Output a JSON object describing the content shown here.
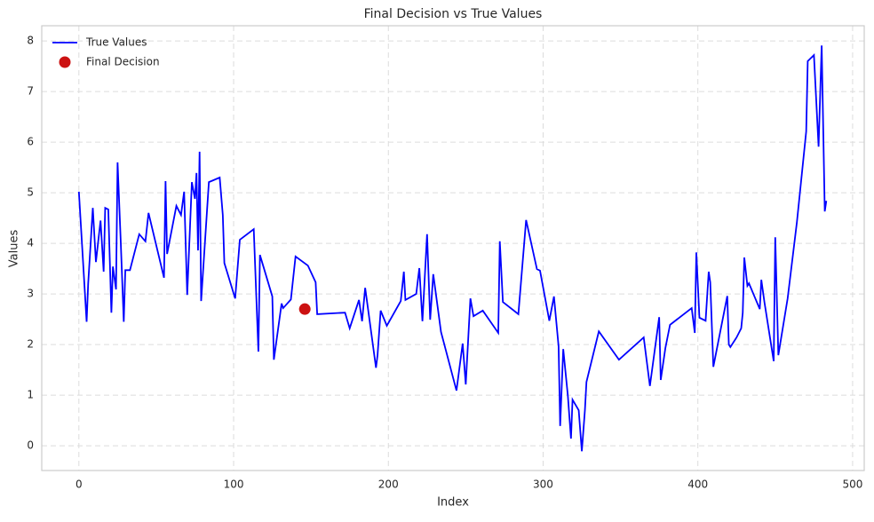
{
  "chart_data": {
    "type": "line",
    "title": "Final Decision vs True Values",
    "x_label": "Index",
    "y_label": "Values",
    "xlim": [
      -24,
      507.5
    ],
    "ylim": [
      -0.49,
      8.3
    ],
    "xticks": [
      0,
      100,
      200,
      300,
      400,
      500
    ],
    "yticks": [
      0,
      1,
      2,
      3,
      4,
      5,
      6,
      7,
      8
    ],
    "grid": true,
    "legend": "upper left",
    "series": [
      {
        "name": "True Values",
        "color": "#0000ff",
        "mode": "lines",
        "x": [
          0,
          5,
          6,
          9,
          11,
          14,
          16,
          17,
          19,
          21,
          22,
          24,
          25,
          27,
          29,
          30,
          33,
          39,
          43,
          45,
          55,
          56,
          57,
          63,
          66,
          68,
          70,
          73,
          75,
          76,
          77,
          78,
          79,
          84,
          91,
          93,
          94,
          101,
          104,
          113,
          116,
          117,
          125,
          126,
          131,
          132,
          137,
          140,
          148,
          153,
          154,
          172,
          175,
          181,
          183,
          185,
          192,
          193,
          195,
          199,
          208,
          210,
          211,
          218,
          220,
          222,
          225,
          227,
          229,
          234,
          244,
          248,
          250,
          253,
          255,
          261,
          271,
          272,
          274,
          284,
          289,
          296,
          298,
          304,
          307,
          310,
          311,
          313,
          316,
          318,
          319,
          323,
          325,
          327,
          328,
          336,
          349,
          365,
          369,
          375,
          376,
          379,
          382,
          396,
          398,
          399,
          401,
          405,
          407,
          408,
          410,
          417,
          419,
          420,
          421,
          425,
          427,
          428,
          429,
          430,
          432,
          433,
          440,
          441,
          443,
          449,
          450,
          452,
          458,
          464,
          470,
          471,
          475,
          478,
          480,
          482,
          483
        ],
        "values": [
          5.02,
          2.45,
          3.2,
          4.7,
          3.63,
          4.45,
          3.44,
          4.7,
          4.67,
          2.63,
          3.54,
          3.09,
          5.6,
          4.07,
          2.45,
          3.47,
          3.47,
          4.18,
          4.04,
          4.6,
          3.32,
          5.23,
          3.79,
          4.74,
          4.56,
          5.02,
          2.98,
          5.21,
          4.88,
          5.39,
          3.86,
          5.81,
          2.86,
          5.21,
          5.3,
          4.56,
          3.61,
          2.91,
          4.07,
          4.28,
          1.86,
          3.77,
          2.95,
          1.7,
          2.81,
          2.72,
          2.89,
          3.74,
          3.56,
          3.23,
          2.6,
          2.63,
          2.32,
          2.88,
          2.46,
          3.12,
          1.54,
          1.79,
          2.67,
          2.37,
          2.86,
          3.44,
          2.88,
          3.0,
          3.51,
          2.46,
          4.18,
          2.49,
          3.39,
          2.25,
          1.09,
          2.02,
          1.21,
          2.91,
          2.56,
          2.67,
          2.23,
          4.04,
          2.84,
          2.6,
          4.46,
          3.49,
          3.46,
          2.47,
          2.95,
          1.96,
          0.39,
          1.91,
          0.98,
          0.14,
          0.91,
          0.7,
          -0.11,
          0.7,
          1.26,
          2.26,
          1.7,
          2.14,
          1.18,
          2.54,
          1.3,
          1.93,
          2.39,
          2.72,
          2.23,
          3.82,
          2.53,
          2.47,
          3.44,
          3.23,
          1.56,
          2.65,
          2.96,
          2.0,
          1.95,
          2.14,
          2.26,
          2.32,
          2.63,
          3.72,
          3.16,
          3.21,
          2.7,
          3.28,
          2.84,
          1.67,
          4.12,
          1.79,
          2.91,
          4.42,
          6.21,
          7.6,
          7.72,
          5.91,
          7.91,
          4.63,
          4.84
        ]
      },
      {
        "name": "Final Decision",
        "color": "#cc1111",
        "mode": "markers",
        "x": [
          146
        ],
        "values": [
          2.7
        ]
      }
    ]
  }
}
